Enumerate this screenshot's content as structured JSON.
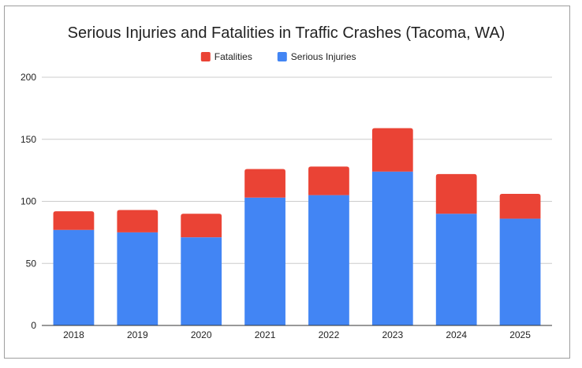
{
  "chart_data": {
    "type": "bar",
    "stacked": true,
    "title": "Serious Injuries and Fatalities in Traffic Crashes (Tacoma, WA)",
    "xlabel": "",
    "ylabel": "",
    "categories": [
      "2018",
      "2019",
      "2020",
      "2021",
      "2022",
      "2023",
      "2024",
      "2025"
    ],
    "series": [
      {
        "name": "Serious Injuries",
        "color": "#4285f4",
        "values": [
          77,
          75,
          71,
          103,
          105,
          124,
          90,
          86
        ]
      },
      {
        "name": "Fatalities",
        "color": "#ea4335",
        "values": [
          15,
          18,
          19,
          23,
          23,
          35,
          32,
          20
        ]
      }
    ],
    "legend_order": [
      1,
      0
    ],
    "legend_position": "top",
    "ylim": [
      0,
      200
    ],
    "yticks": [
      "0",
      "50",
      "100",
      "150",
      "200"
    ],
    "grid": true
  }
}
